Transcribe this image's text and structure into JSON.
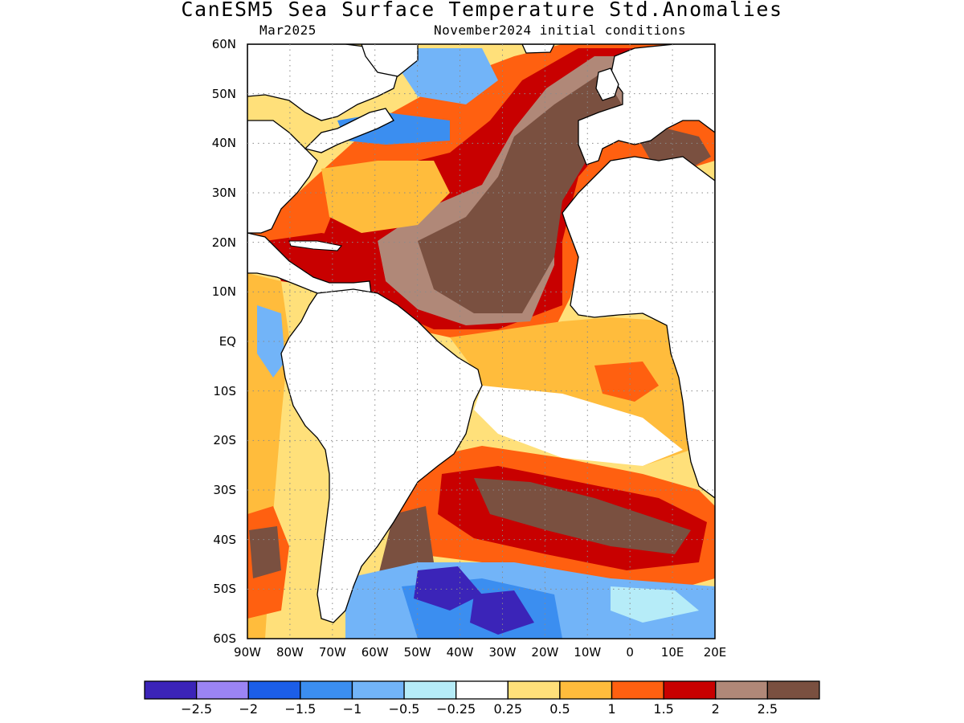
{
  "header": {
    "title": "CanESM5 Sea Surface Temperature Std.Anomalies",
    "valid_month": "Mar2025",
    "initial_conditions": "November2024 initial conditions"
  },
  "map": {
    "lat_ticks": [
      "60N",
      "50N",
      "40N",
      "30N",
      "20N",
      "10N",
      "EQ",
      "10S",
      "20S",
      "30S",
      "40S",
      "50S",
      "60S"
    ],
    "lon_ticks": [
      "90W",
      "80W",
      "70W",
      "60W",
      "50W",
      "40W",
      "30W",
      "20W",
      "10W",
      "0",
      "10E",
      "20E"
    ],
    "lat_range": [
      -60,
      60
    ],
    "lon_range": [
      -90,
      20
    ],
    "grid": "dotted",
    "land_color": "#ffffff",
    "coastline_color": "#000000"
  },
  "colorbar": {
    "colors": [
      "#3b24b8",
      "#9b84f4",
      "#1c5ee8",
      "#3b8ef0",
      "#72b4f8",
      "#b6ecf8",
      "#ffffff",
      "#ffe07a",
      "#ffbc3c",
      "#ff6010",
      "#c80000",
      "#b08878",
      "#7a5040"
    ],
    "labels": [
      "−2.5",
      "−2",
      "−1.5",
      "−1",
      "−0.5",
      "−0.25",
      "0.25",
      "0.5",
      "1",
      "1.5",
      "2",
      "2.5"
    ]
  }
}
